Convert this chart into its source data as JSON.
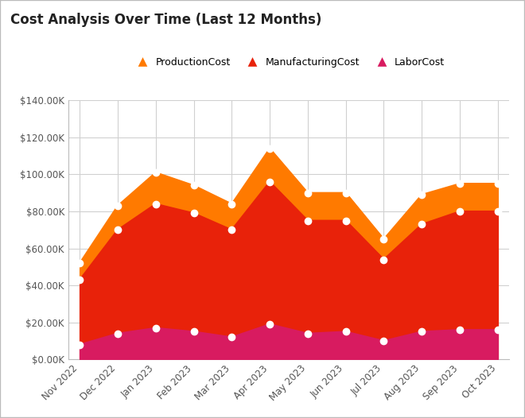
{
  "title": "Cost Analysis Over Time (Last 12 Months)",
  "months": [
    "Nov 2022",
    "Dec 2022",
    "Jan 2023",
    "Feb 2023",
    "Mar 2023",
    "Apr 2023",
    "May 2023",
    "Jun 2023",
    "Jul 2023",
    "Aug 2023",
    "Sep 2023",
    "Oct 2023"
  ],
  "production_cost": [
    52000,
    83000,
    101000,
    94000,
    84000,
    114000,
    90000,
    90000,
    65000,
    89000,
    95000,
    95000
  ],
  "manufacturing_cost": [
    43000,
    70000,
    84000,
    79000,
    70000,
    96000,
    75000,
    75000,
    54000,
    73000,
    80000,
    80000
  ],
  "labor_cost": [
    8000,
    14000,
    17000,
    15000,
    12000,
    19000,
    14000,
    15000,
    10000,
    15000,
    16000,
    16000
  ],
  "production_color": "#FF7A00",
  "manufacturing_color": "#E8220A",
  "labor_color": "#D81B60",
  "background_color": "#ffffff",
  "grid_color": "#d0d0d0",
  "border_color": "#bbbbbb",
  "ylim": [
    0,
    140000
  ],
  "yticks": [
    0,
    20000,
    40000,
    60000,
    80000,
    100000,
    120000,
    140000
  ],
  "title_fontsize": 12,
  "legend_fontsize": 9,
  "tick_fontsize": 8.5
}
